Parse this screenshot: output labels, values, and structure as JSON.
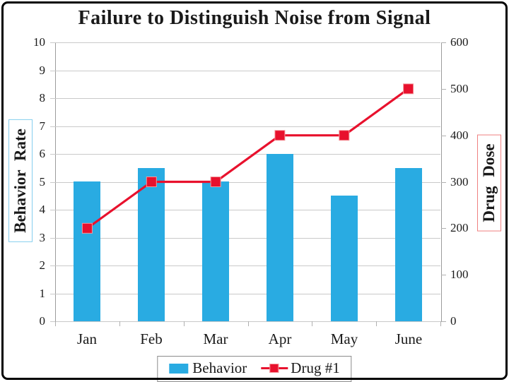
{
  "title": "Failure to Distinguish Noise from Signal",
  "chart_data": {
    "type": "combo-bar-line",
    "categories": [
      "Jan",
      "Feb",
      "Mar",
      "Apr",
      "May",
      "June"
    ],
    "series": [
      {
        "name": "Behavior",
        "type": "bar",
        "axis": "left",
        "color": "#29ABE2",
        "values": [
          5,
          5.5,
          5,
          6,
          4.5,
          5.5
        ]
      },
      {
        "name": "Drug #1",
        "type": "line",
        "axis": "right",
        "color": "#E8112D",
        "marker": "square",
        "values": [
          200,
          300,
          300,
          400,
          400,
          500
        ]
      }
    ],
    "left_axis": {
      "label": "Behavior Rate",
      "ticks": [
        0,
        1,
        2,
        3,
        4,
        5,
        6,
        7,
        8,
        9,
        10
      ],
      "lim": [
        0,
        10
      ]
    },
    "right_axis": {
      "label": "Drug Dose",
      "ticks": [
        0,
        100,
        200,
        300,
        400,
        500,
        600
      ],
      "lim": [
        0,
        600
      ]
    },
    "grid": true,
    "legend_position": "bottom"
  },
  "colors": {
    "bar_blue": "#29ABE2",
    "line_red": "#E8112D",
    "marker_edge": "#F4989C",
    "left_title_box_border": "#86CEEF",
    "right_title_box_border": "#F08080",
    "gridline": "#C9C9C9",
    "axis_line": "#9B9B9B",
    "frame": "#000000"
  }
}
